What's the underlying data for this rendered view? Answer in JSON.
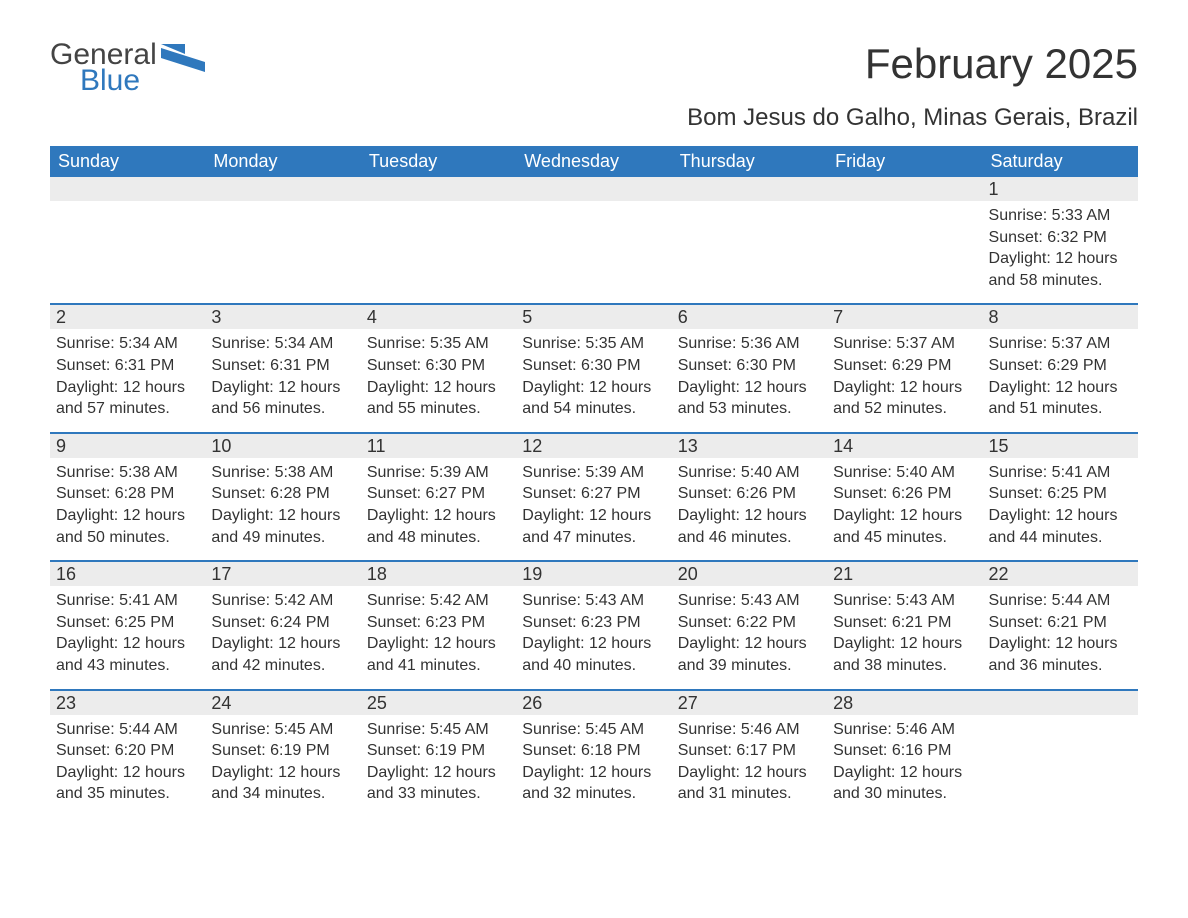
{
  "logo": {
    "text1": "General",
    "text2": "Blue",
    "icon_color": "#2f78bd"
  },
  "title": "February 2025",
  "location": "Bom Jesus do Galho, Minas Gerais, Brazil",
  "colors": {
    "header_bg": "#2f78bd",
    "header_text": "#ffffff",
    "daynum_bg": "#ececec",
    "text": "#333333",
    "rule": "#2f78bd"
  },
  "weekdays": [
    "Sunday",
    "Monday",
    "Tuesday",
    "Wednesday",
    "Thursday",
    "Friday",
    "Saturday"
  ],
  "weeks": [
    [
      {
        "n": "",
        "sr": "",
        "ss": "",
        "dl": ""
      },
      {
        "n": "",
        "sr": "",
        "ss": "",
        "dl": ""
      },
      {
        "n": "",
        "sr": "",
        "ss": "",
        "dl": ""
      },
      {
        "n": "",
        "sr": "",
        "ss": "",
        "dl": ""
      },
      {
        "n": "",
        "sr": "",
        "ss": "",
        "dl": ""
      },
      {
        "n": "",
        "sr": "",
        "ss": "",
        "dl": ""
      },
      {
        "n": "1",
        "sr": "Sunrise: 5:33 AM",
        "ss": "Sunset: 6:32 PM",
        "dl": "Daylight: 12 hours and 58 minutes."
      }
    ],
    [
      {
        "n": "2",
        "sr": "Sunrise: 5:34 AM",
        "ss": "Sunset: 6:31 PM",
        "dl": "Daylight: 12 hours and 57 minutes."
      },
      {
        "n": "3",
        "sr": "Sunrise: 5:34 AM",
        "ss": "Sunset: 6:31 PM",
        "dl": "Daylight: 12 hours and 56 minutes."
      },
      {
        "n": "4",
        "sr": "Sunrise: 5:35 AM",
        "ss": "Sunset: 6:30 PM",
        "dl": "Daylight: 12 hours and 55 minutes."
      },
      {
        "n": "5",
        "sr": "Sunrise: 5:35 AM",
        "ss": "Sunset: 6:30 PM",
        "dl": "Daylight: 12 hours and 54 minutes."
      },
      {
        "n": "6",
        "sr": "Sunrise: 5:36 AM",
        "ss": "Sunset: 6:30 PM",
        "dl": "Daylight: 12 hours and 53 minutes."
      },
      {
        "n": "7",
        "sr": "Sunrise: 5:37 AM",
        "ss": "Sunset: 6:29 PM",
        "dl": "Daylight: 12 hours and 52 minutes."
      },
      {
        "n": "8",
        "sr": "Sunrise: 5:37 AM",
        "ss": "Sunset: 6:29 PM",
        "dl": "Daylight: 12 hours and 51 minutes."
      }
    ],
    [
      {
        "n": "9",
        "sr": "Sunrise: 5:38 AM",
        "ss": "Sunset: 6:28 PM",
        "dl": "Daylight: 12 hours and 50 minutes."
      },
      {
        "n": "10",
        "sr": "Sunrise: 5:38 AM",
        "ss": "Sunset: 6:28 PM",
        "dl": "Daylight: 12 hours and 49 minutes."
      },
      {
        "n": "11",
        "sr": "Sunrise: 5:39 AM",
        "ss": "Sunset: 6:27 PM",
        "dl": "Daylight: 12 hours and 48 minutes."
      },
      {
        "n": "12",
        "sr": "Sunrise: 5:39 AM",
        "ss": "Sunset: 6:27 PM",
        "dl": "Daylight: 12 hours and 47 minutes."
      },
      {
        "n": "13",
        "sr": "Sunrise: 5:40 AM",
        "ss": "Sunset: 6:26 PM",
        "dl": "Daylight: 12 hours and 46 minutes."
      },
      {
        "n": "14",
        "sr": "Sunrise: 5:40 AM",
        "ss": "Sunset: 6:26 PM",
        "dl": "Daylight: 12 hours and 45 minutes."
      },
      {
        "n": "15",
        "sr": "Sunrise: 5:41 AM",
        "ss": "Sunset: 6:25 PM",
        "dl": "Daylight: 12 hours and 44 minutes."
      }
    ],
    [
      {
        "n": "16",
        "sr": "Sunrise: 5:41 AM",
        "ss": "Sunset: 6:25 PM",
        "dl": "Daylight: 12 hours and 43 minutes."
      },
      {
        "n": "17",
        "sr": "Sunrise: 5:42 AM",
        "ss": "Sunset: 6:24 PM",
        "dl": "Daylight: 12 hours and 42 minutes."
      },
      {
        "n": "18",
        "sr": "Sunrise: 5:42 AM",
        "ss": "Sunset: 6:23 PM",
        "dl": "Daylight: 12 hours and 41 minutes."
      },
      {
        "n": "19",
        "sr": "Sunrise: 5:43 AM",
        "ss": "Sunset: 6:23 PM",
        "dl": "Daylight: 12 hours and 40 minutes."
      },
      {
        "n": "20",
        "sr": "Sunrise: 5:43 AM",
        "ss": "Sunset: 6:22 PM",
        "dl": "Daylight: 12 hours and 39 minutes."
      },
      {
        "n": "21",
        "sr": "Sunrise: 5:43 AM",
        "ss": "Sunset: 6:21 PM",
        "dl": "Daylight: 12 hours and 38 minutes."
      },
      {
        "n": "22",
        "sr": "Sunrise: 5:44 AM",
        "ss": "Sunset: 6:21 PM",
        "dl": "Daylight: 12 hours and 36 minutes."
      }
    ],
    [
      {
        "n": "23",
        "sr": "Sunrise: 5:44 AM",
        "ss": "Sunset: 6:20 PM",
        "dl": "Daylight: 12 hours and 35 minutes."
      },
      {
        "n": "24",
        "sr": "Sunrise: 5:45 AM",
        "ss": "Sunset: 6:19 PM",
        "dl": "Daylight: 12 hours and 34 minutes."
      },
      {
        "n": "25",
        "sr": "Sunrise: 5:45 AM",
        "ss": "Sunset: 6:19 PM",
        "dl": "Daylight: 12 hours and 33 minutes."
      },
      {
        "n": "26",
        "sr": "Sunrise: 5:45 AM",
        "ss": "Sunset: 6:18 PM",
        "dl": "Daylight: 12 hours and 32 minutes."
      },
      {
        "n": "27",
        "sr": "Sunrise: 5:46 AM",
        "ss": "Sunset: 6:17 PM",
        "dl": "Daylight: 12 hours and 31 minutes."
      },
      {
        "n": "28",
        "sr": "Sunrise: 5:46 AM",
        "ss": "Sunset: 6:16 PM",
        "dl": "Daylight: 12 hours and 30 minutes."
      },
      {
        "n": "",
        "sr": "",
        "ss": "",
        "dl": ""
      }
    ]
  ]
}
